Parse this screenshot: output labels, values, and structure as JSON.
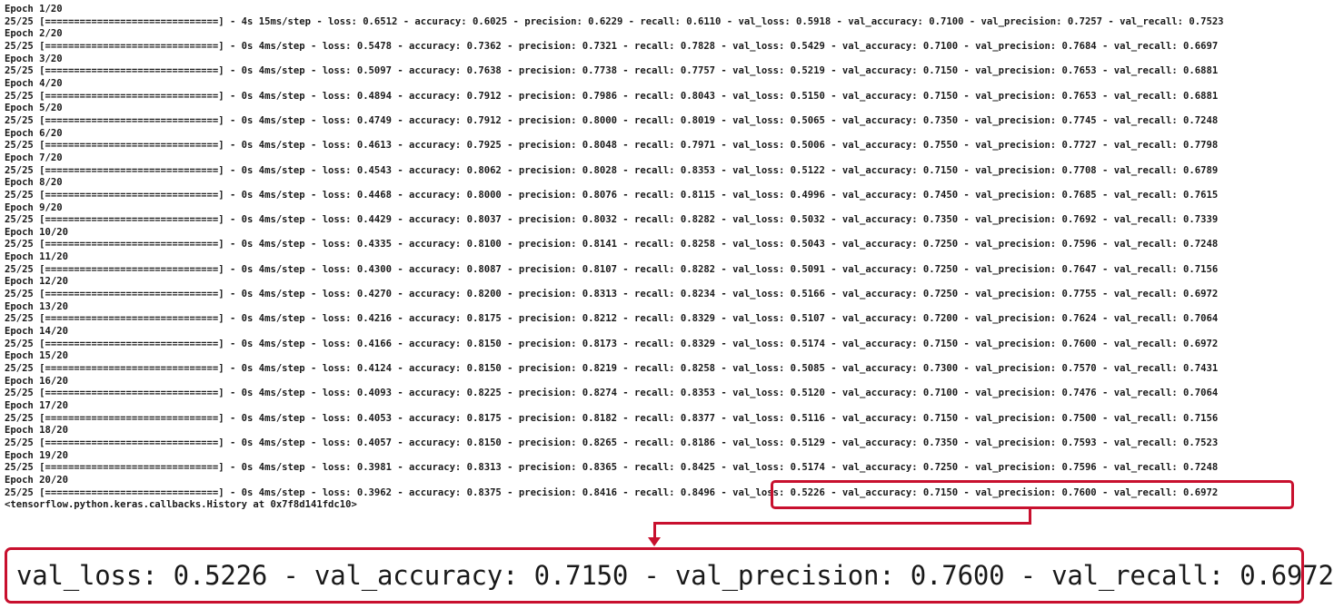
{
  "console_lines": [
    "Epoch 1/20",
    "25/25 [==============================] - 4s 15ms/step - loss: 0.6512 - accuracy: 0.6025 - precision: 0.6229 - recall: 0.6110 - val_loss: 0.5918 - val_accuracy: 0.7100 - val_precision: 0.7257 - val_recall: 0.7523",
    "Epoch 2/20",
    "25/25 [==============================] - 0s 4ms/step - loss: 0.5478 - accuracy: 0.7362 - precision: 0.7321 - recall: 0.7828 - val_loss: 0.5429 - val_accuracy: 0.7100 - val_precision: 0.7684 - val_recall: 0.6697",
    "Epoch 3/20",
    "25/25 [==============================] - 0s 4ms/step - loss: 0.5097 - accuracy: 0.7638 - precision: 0.7738 - recall: 0.7757 - val_loss: 0.5219 - val_accuracy: 0.7150 - val_precision: 0.7653 - val_recall: 0.6881",
    "Epoch 4/20",
    "25/25 [==============================] - 0s 4ms/step - loss: 0.4894 - accuracy: 0.7912 - precision: 0.7986 - recall: 0.8043 - val_loss: 0.5150 - val_accuracy: 0.7150 - val_precision: 0.7653 - val_recall: 0.6881",
    "Epoch 5/20",
    "25/25 [==============================] - 0s 4ms/step - loss: 0.4749 - accuracy: 0.7912 - precision: 0.8000 - recall: 0.8019 - val_loss: 0.5065 - val_accuracy: 0.7350 - val_precision: 0.7745 - val_recall: 0.7248",
    "Epoch 6/20",
    "25/25 [==============================] - 0s 4ms/step - loss: 0.4613 - accuracy: 0.7925 - precision: 0.8048 - recall: 0.7971 - val_loss: 0.5006 - val_accuracy: 0.7550 - val_precision: 0.7727 - val_recall: 0.7798",
    "Epoch 7/20",
    "25/25 [==============================] - 0s 4ms/step - loss: 0.4543 - accuracy: 0.8062 - precision: 0.8028 - recall: 0.8353 - val_loss: 0.5122 - val_accuracy: 0.7150 - val_precision: 0.7708 - val_recall: 0.6789",
    "Epoch 8/20",
    "25/25 [==============================] - 0s 4ms/step - loss: 0.4468 - accuracy: 0.8000 - precision: 0.8076 - recall: 0.8115 - val_loss: 0.4996 - val_accuracy: 0.7450 - val_precision: 0.7685 - val_recall: 0.7615",
    "Epoch 9/20",
    "25/25 [==============================] - 0s 4ms/step - loss: 0.4429 - accuracy: 0.8037 - precision: 0.8032 - recall: 0.8282 - val_loss: 0.5032 - val_accuracy: 0.7350 - val_precision: 0.7692 - val_recall: 0.7339",
    "Epoch 10/20",
    "25/25 [==============================] - 0s 4ms/step - loss: 0.4335 - accuracy: 0.8100 - precision: 0.8141 - recall: 0.8258 - val_loss: 0.5043 - val_accuracy: 0.7250 - val_precision: 0.7596 - val_recall: 0.7248",
    "Epoch 11/20",
    "25/25 [==============================] - 0s 4ms/step - loss: 0.4300 - accuracy: 0.8087 - precision: 0.8107 - recall: 0.8282 - val_loss: 0.5091 - val_accuracy: 0.7250 - val_precision: 0.7647 - val_recall: 0.7156",
    "Epoch 12/20",
    "25/25 [==============================] - 0s 4ms/step - loss: 0.4270 - accuracy: 0.8200 - precision: 0.8313 - recall: 0.8234 - val_loss: 0.5166 - val_accuracy: 0.7250 - val_precision: 0.7755 - val_recall: 0.6972",
    "Epoch 13/20",
    "25/25 [==============================] - 0s 4ms/step - loss: 0.4216 - accuracy: 0.8175 - precision: 0.8212 - recall: 0.8329 - val_loss: 0.5107 - val_accuracy: 0.7200 - val_precision: 0.7624 - val_recall: 0.7064",
    "Epoch 14/20",
    "25/25 [==============================] - 0s 4ms/step - loss: 0.4166 - accuracy: 0.8150 - precision: 0.8173 - recall: 0.8329 - val_loss: 0.5174 - val_accuracy: 0.7150 - val_precision: 0.7600 - val_recall: 0.6972",
    "Epoch 15/20",
    "25/25 [==============================] - 0s 4ms/step - loss: 0.4124 - accuracy: 0.8150 - precision: 0.8219 - recall: 0.8258 - val_loss: 0.5085 - val_accuracy: 0.7300 - val_precision: 0.7570 - val_recall: 0.7431",
    "Epoch 16/20",
    "25/25 [==============================] - 0s 4ms/step - loss: 0.4093 - accuracy: 0.8225 - precision: 0.8274 - recall: 0.8353 - val_loss: 0.5120 - val_accuracy: 0.7100 - val_precision: 0.7476 - val_recall: 0.7064",
    "Epoch 17/20",
    "25/25 [==============================] - 0s 4ms/step - loss: 0.4053 - accuracy: 0.8175 - precision: 0.8182 - recall: 0.8377 - val_loss: 0.5116 - val_accuracy: 0.7150 - val_precision: 0.7500 - val_recall: 0.7156",
    "Epoch 18/20",
    "25/25 [==============================] - 0s 4ms/step - loss: 0.4057 - accuracy: 0.8150 - precision: 0.8265 - recall: 0.8186 - val_loss: 0.5129 - val_accuracy: 0.7350 - val_precision: 0.7593 - val_recall: 0.7523",
    "Epoch 19/20",
    "25/25 [==============================] - 0s 4ms/step - loss: 0.3981 - accuracy: 0.8313 - precision: 0.8365 - recall: 0.8425 - val_loss: 0.5174 - val_accuracy: 0.7250 - val_precision: 0.7596 - val_recall: 0.7248",
    "Epoch 20/20",
    "25/25 [==============================] - 0s 4ms/step - loss: 0.3962 - accuracy: 0.8375 - precision: 0.8416 - recall: 0.8496 - val_loss: 0.5226 - val_accuracy: 0.7150 - val_precision: 0.7600 - val_recall: 0.6972",
    "<tensorflow.python.keras.callbacks.History at 0x7f8d141fdc10>"
  ],
  "zoom": {
    "text": "val_loss: 0.5226 - val_accuracy: 0.7150 - val_precision: 0.7600 - val_recall: 0.6972"
  },
  "colors": {
    "highlight": "#c8102e",
    "text": "#1a1a1a",
    "background": "#ffffff"
  }
}
